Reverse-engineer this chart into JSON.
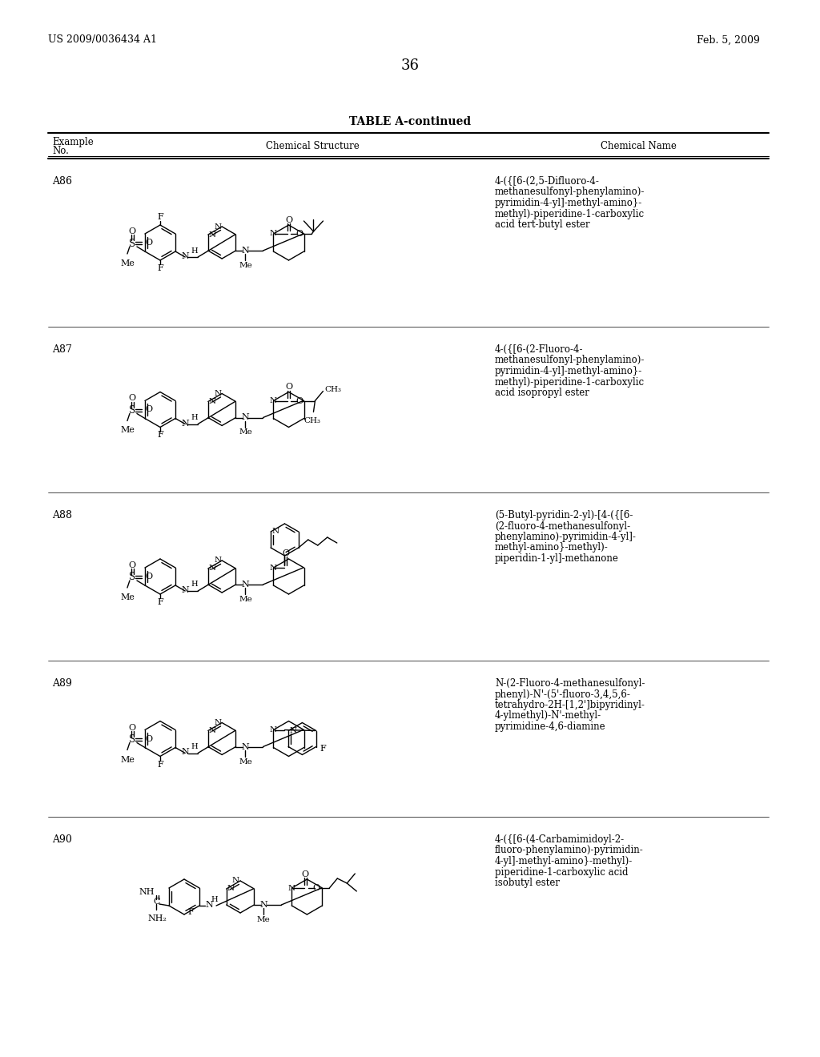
{
  "patent_number": "US 2009/0036434 A1",
  "patent_date": "Feb. 5, 2009",
  "page_number": "36",
  "table_title": "TABLE A-continued",
  "col1_header_line1": "Example",
  "col1_header_line2": "No.",
  "col2_header": "Chemical Structure",
  "col3_header": "Chemical Name",
  "examples": [
    "A86",
    "A87",
    "A88",
    "A89",
    "A90"
  ],
  "names": [
    [
      "4-({[6-(2,5-Difluoro-4-",
      "methanesulfonyl-phenylamino)-",
      "pyrimidin-4-yl]-methyl-amino}-",
      "methyl)-piperidine-1-carboxylic",
      "acid tert-butyl ester"
    ],
    [
      "4-({[6-(2-Fluoro-4-",
      "methanesulfonyl-phenylamino)-",
      "pyrimidin-4-yl]-methyl-amino}-",
      "methyl)-piperidine-1-carboxylic",
      "acid isopropyl ester"
    ],
    [
      "(5-Butyl-pyridin-2-yl)-[4-({[6-",
      "(2-fluoro-4-methanesulfonyl-",
      "phenylamino)-pyrimidin-4-yl]-",
      "methyl-amino}-methyl)-",
      "piperidin-1-yl]-methanone"
    ],
    [
      "N-(2-Fluoro-4-methanesulfonyl-",
      "phenyl)-N'-(5'-fluoro-3,4,5,6-",
      "tetrahydro-2H-[1,2']bipyridinyl-",
      "4-ylmethyl)-N'-methyl-",
      "pyrimidine-4,6-diamine"
    ],
    [
      "4-({[6-(4-Carbamimidoyl-2-",
      "fluoro-phenylamino)-pyrimidin-",
      "4-yl]-methyl-amino}-methyl)-",
      "piperidine-1-carboxylic acid",
      "isobutyl ester"
    ]
  ],
  "row_tops": [
    198,
    408,
    615,
    825,
    1020,
    1220
  ],
  "bg_color": "#ffffff",
  "text_color": "#000000"
}
